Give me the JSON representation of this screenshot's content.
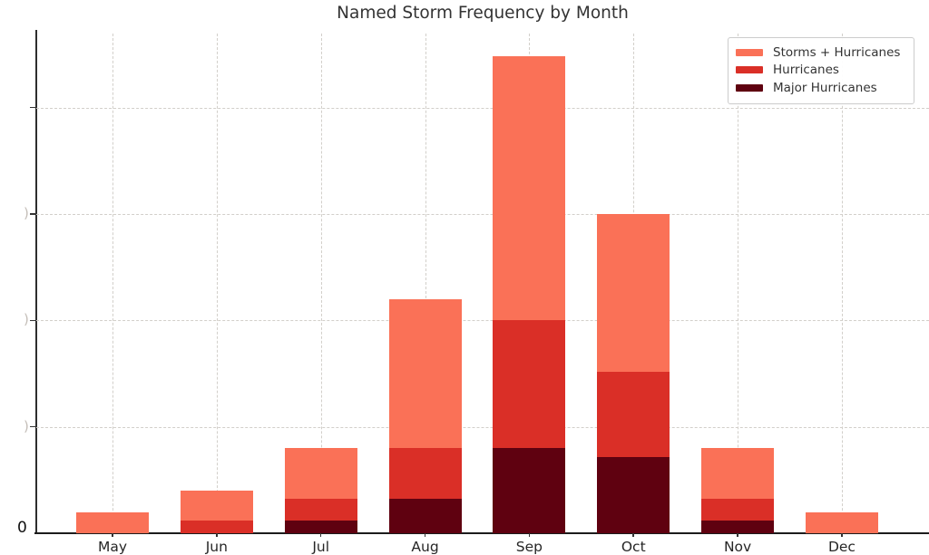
{
  "title": "Named Storm Frequency by Month",
  "legend": {
    "items": [
      {
        "label": "Storms + Hurricanes",
        "color": "#fa7157"
      },
      {
        "label": "Hurricanes",
        "color": "#da2f27"
      },
      {
        "label": "Major Hurricanes",
        "color": "#5f0110"
      }
    ]
  },
  "y_axis": {
    "visible_tick_label": "0",
    "clipped_fragment_glyph": ")"
  },
  "x_axis": {
    "labels": [
      "May",
      "Jun",
      "Jul",
      "Aug",
      "Sep",
      "Oct",
      "Nov",
      "Dec"
    ]
  },
  "chart_data": {
    "type": "bar",
    "mode": "overlaid",
    "title": "Named Storm Frequency by Month",
    "categories": [
      "May",
      "Jun",
      "Jul",
      "Aug",
      "Sep",
      "Oct",
      "Nov",
      "Dec"
    ],
    "series": [
      {
        "name": "Storms + Hurricanes",
        "color": "#fa7157",
        "values": [
          5,
          10,
          20,
          55,
          112,
          75,
          20,
          5
        ]
      },
      {
        "name": "Hurricanes",
        "color": "#da2f27",
        "values": [
          0,
          3,
          8,
          20,
          50,
          38,
          8,
          0
        ]
      },
      {
        "name": "Major Hurricanes",
        "color": "#5f0110",
        "values": [
          0,
          0,
          3,
          8,
          20,
          18,
          3,
          0
        ]
      }
    ],
    "xlabel": "",
    "ylabel": "",
    "ylim": [
      0,
      117.4
    ],
    "y_gridlines": [
      25,
      50,
      75,
      100
    ],
    "y_fragment_gridlines": [
      25,
      50,
      75
    ],
    "grid": true,
    "legend_position": "upper right"
  }
}
